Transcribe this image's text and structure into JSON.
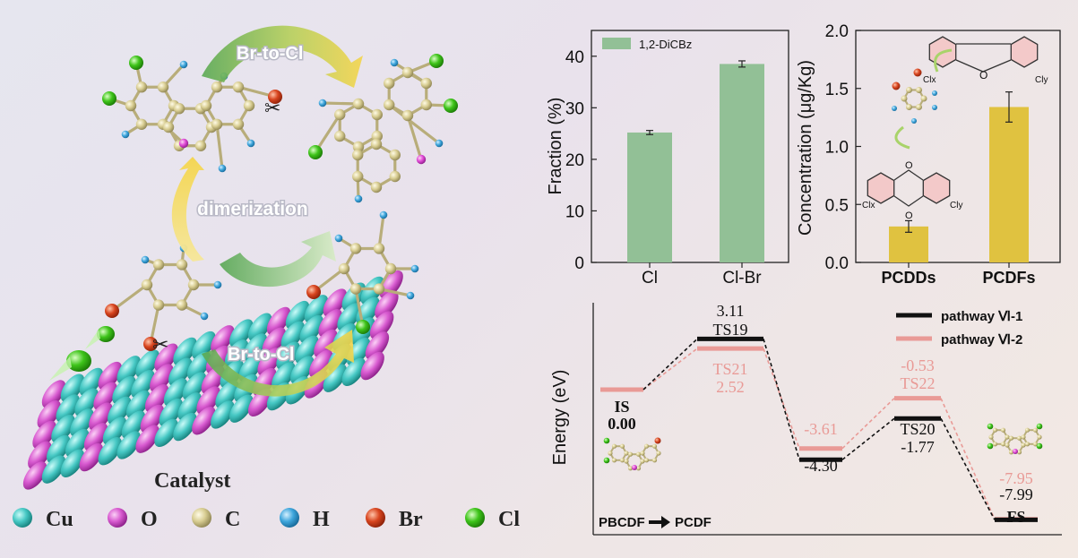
{
  "left_panel": {
    "top_arrow_label": "Br-to-Cl",
    "middle_arrow_label": "dimerization",
    "bottom_arrow_label": "Br-to-Cl",
    "catalyst_label": "Catalyst",
    "legend": [
      {
        "label": "Cu",
        "color": "#46c8c4"
      },
      {
        "label": "O",
        "color": "#d85ad0"
      },
      {
        "label": "C",
        "color": "#e0d69e"
      },
      {
        "label": "H",
        "color": "#3fa6dc"
      },
      {
        "label": "Br",
        "color": "#d8451f"
      },
      {
        "label": "Cl",
        "color": "#3ec41a"
      }
    ]
  },
  "chart_data": [
    {
      "type": "bar",
      "categories": [
        "Cl",
        "Cl-Br"
      ],
      "series": [
        {
          "name": "1,2-DiCBz",
          "values": [
            25.2,
            38.5
          ],
          "errors": [
            0.4,
            0.6
          ],
          "color": "#92c096"
        }
      ],
      "ylabel": "Fraction (%)",
      "ylim": [
        0,
        45
      ],
      "yticks": [
        "0",
        "10",
        "20",
        "30",
        "40"
      ],
      "legend": "top-left"
    },
    {
      "type": "bar",
      "categories": [
        "PCDDs",
        "PCDFs"
      ],
      "series": [
        {
          "values": [
            0.31,
            1.34
          ],
          "errors": [
            0.05,
            0.13
          ],
          "color": "#e0c240"
        }
      ],
      "ylabel": "Concentration (μg/Kg)",
      "ylim": [
        0,
        2.0
      ],
      "yticks": [
        "0.0",
        "0.5",
        "1.0",
        "1.5",
        "2.0"
      ],
      "annotations": {
        "sub_x": "Cl",
        "x_sub": "x",
        "sub_y": "Cl",
        "y_sub": "y"
      }
    },
    {
      "type": "energy_profile",
      "ylabel": "Energy (eV)",
      "reaction_label_from": "PBCDF",
      "reaction_label_to": "PCDF",
      "series": [
        {
          "name": "pathway Ⅵ-1",
          "color": "#111111",
          "states": [
            "TS19",
            "",
            "TS20",
            "FS"
          ],
          "energies": [
            "3.11",
            "-4.30",
            "-1.77",
            "-7.99"
          ],
          "values": [
            3.11,
            -4.3,
            -1.77,
            -7.99
          ]
        },
        {
          "name": "pathway Ⅵ-2",
          "color": "#e99a96",
          "states": [
            "IS",
            "TS21",
            "",
            "TS22",
            ""
          ],
          "energies": [
            "0.00",
            "2.52",
            "-3.61",
            "-0.53",
            "-7.95"
          ],
          "values": [
            0.0,
            2.52,
            -3.61,
            -0.53,
            -7.95
          ]
        }
      ]
    }
  ]
}
